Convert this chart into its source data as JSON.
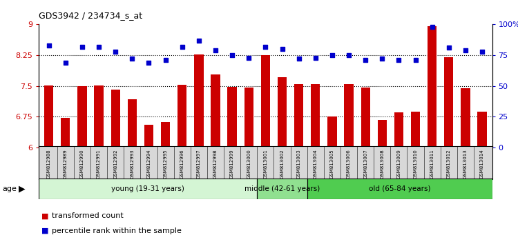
{
  "title": "GDS3942 / 234734_s_at",
  "samples": [
    "GSM812988",
    "GSM812989",
    "GSM812990",
    "GSM812991",
    "GSM812992",
    "GSM812993",
    "GSM812994",
    "GSM812995",
    "GSM812996",
    "GSM812997",
    "GSM812998",
    "GSM812999",
    "GSM813000",
    "GSM813001",
    "GSM813002",
    "GSM813003",
    "GSM813004",
    "GSM813005",
    "GSM813006",
    "GSM813007",
    "GSM813008",
    "GSM813009",
    "GSM813010",
    "GSM813011",
    "GSM813012",
    "GSM813013",
    "GSM813014"
  ],
  "bar_values": [
    7.52,
    6.72,
    7.5,
    7.52,
    7.42,
    7.18,
    6.55,
    6.62,
    7.53,
    8.27,
    7.78,
    7.48,
    7.47,
    8.25,
    7.72,
    7.55,
    7.55,
    6.76,
    7.55,
    7.47,
    6.67,
    6.86,
    6.88,
    8.95,
    8.2,
    7.45,
    6.88
  ],
  "dot_values": [
    83,
    69,
    82,
    82,
    78,
    72,
    69,
    71,
    82,
    87,
    79,
    75,
    73,
    82,
    80,
    72,
    73,
    75,
    75,
    71,
    72,
    71,
    71,
    98,
    81,
    79,
    78
  ],
  "bar_color": "#cc0000",
  "dot_color": "#0000cc",
  "ylim_left": [
    6.0,
    9.0
  ],
  "ylim_right": [
    0,
    100
  ],
  "yticks_left": [
    6.0,
    6.75,
    7.5,
    8.25,
    9.0
  ],
  "ytick_labels_left": [
    "6",
    "6.75",
    "7.5",
    "8.25",
    "9"
  ],
  "yticks_right": [
    0,
    25,
    50,
    75,
    100
  ],
  "ytick_labels_right": [
    "0",
    "25",
    "50",
    "75",
    "100%"
  ],
  "hlines": [
    6.75,
    7.5,
    8.25
  ],
  "groups": [
    {
      "label": "young (19-31 years)",
      "start": 0,
      "end": 13,
      "color": "#d4f5d4"
    },
    {
      "label": "middle (42-61 years)",
      "start": 13,
      "end": 16,
      "color": "#90e090"
    },
    {
      "label": "old (65-84 years)",
      "start": 16,
      "end": 27,
      "color": "#50cc50"
    }
  ],
  "legend": [
    {
      "label": "transformed count",
      "color": "#cc0000"
    },
    {
      "label": "percentile rank within the sample",
      "color": "#0000cc"
    }
  ]
}
